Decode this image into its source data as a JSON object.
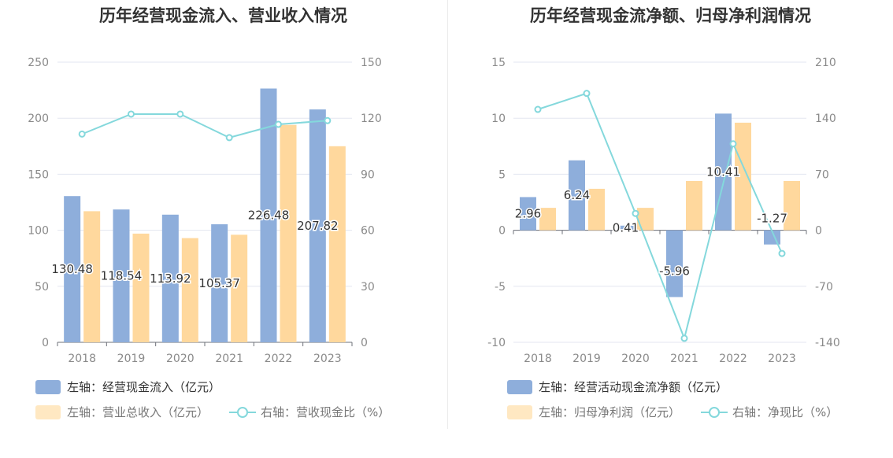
{
  "charts": [
    {
      "title": "历年经营现金流入、营业收入情况",
      "legend": [
        {
          "label": "左轴：经营现金流入（亿元）",
          "color": "#8eaedb",
          "kind": "box"
        },
        {
          "label": "左轴：营业总收入（亿元）",
          "color": "#ffe8c2",
          "kind": "box"
        },
        {
          "label": "右轴：营收现金比（%）",
          "color": "#84d8dc",
          "kind": "line"
        }
      ]
    },
    {
      "title": "历年经营现金流净额、归母净利润情况",
      "legend": [
        {
          "label": "左轴：经营活动现金流净额（亿元）",
          "color": "#8eaedb",
          "kind": "box"
        },
        {
          "label": "左轴：归母净利润（亿元）",
          "color": "#ffe8c2",
          "kind": "box"
        },
        {
          "label": "右轴：净现比（%）",
          "color": "#84d8dc",
          "kind": "line"
        }
      ]
    }
  ],
  "chart_data": [
    {
      "type": "bar",
      "title": "历年经营现金流入、营业收入情况",
      "categories": [
        "2018",
        "2019",
        "2020",
        "2021",
        "2022",
        "2023"
      ],
      "y_left": {
        "min": 0,
        "max": 250,
        "ticks": [
          0,
          50,
          100,
          150,
          200,
          250
        ]
      },
      "y_right": {
        "min": 0,
        "max": 150,
        "ticks": [
          0,
          30,
          60,
          90,
          120,
          150
        ]
      },
      "series": [
        {
          "name": "左轴：经营现金流入（亿元）",
          "type": "bar",
          "axis": "left",
          "color": "#8eaedb",
          "values": [
            130.48,
            118.54,
            113.92,
            105.37,
            226.48,
            207.82
          ],
          "labels": true
        },
        {
          "name": "左轴：营业总收入（亿元）",
          "type": "bar",
          "axis": "left",
          "color": "#ffd89d",
          "values": [
            117,
            97,
            93,
            96,
            194,
            175
          ],
          "labels": false
        },
        {
          "name": "右轴：营收现金比（%）",
          "type": "line",
          "axis": "right",
          "color": "#84d8dc",
          "values": [
            111.5,
            122.2,
            122.2,
            109.6,
            116.7,
            118.7
          ]
        }
      ],
      "grid": true,
      "legend_position": "bottom-left"
    },
    {
      "type": "bar",
      "title": "历年经营现金流净额、归母净利润情况",
      "categories": [
        "2018",
        "2019",
        "2020",
        "2021",
        "2022",
        "2023"
      ],
      "y_left": {
        "min": -10,
        "max": 15,
        "ticks": [
          -10,
          -5,
          0,
          5,
          10,
          15
        ]
      },
      "y_right": {
        "min": -140,
        "max": 210,
        "ticks": [
          -140,
          -70,
          0,
          70,
          140,
          210
        ]
      },
      "series": [
        {
          "name": "左轴：经营活动现金流净额（亿元）",
          "type": "bar",
          "axis": "left",
          "color": "#8eaedb",
          "values": [
            2.96,
            6.24,
            0.41,
            -5.96,
            10.41,
            -1.27
          ],
          "labels": true
        },
        {
          "name": "左轴：归母净利润（亿元）",
          "type": "bar",
          "axis": "left",
          "color": "#ffd89d",
          "values": [
            2.0,
            3.7,
            2.0,
            4.4,
            9.6,
            4.4
          ],
          "labels": false
        },
        {
          "name": "右轴：净现比（%）",
          "type": "line",
          "axis": "right",
          "color": "#84d8dc",
          "values": [
            151,
            171,
            21,
            -135,
            108,
            -29
          ]
        }
      ],
      "grid": true,
      "legend_position": "bottom-left"
    }
  ]
}
